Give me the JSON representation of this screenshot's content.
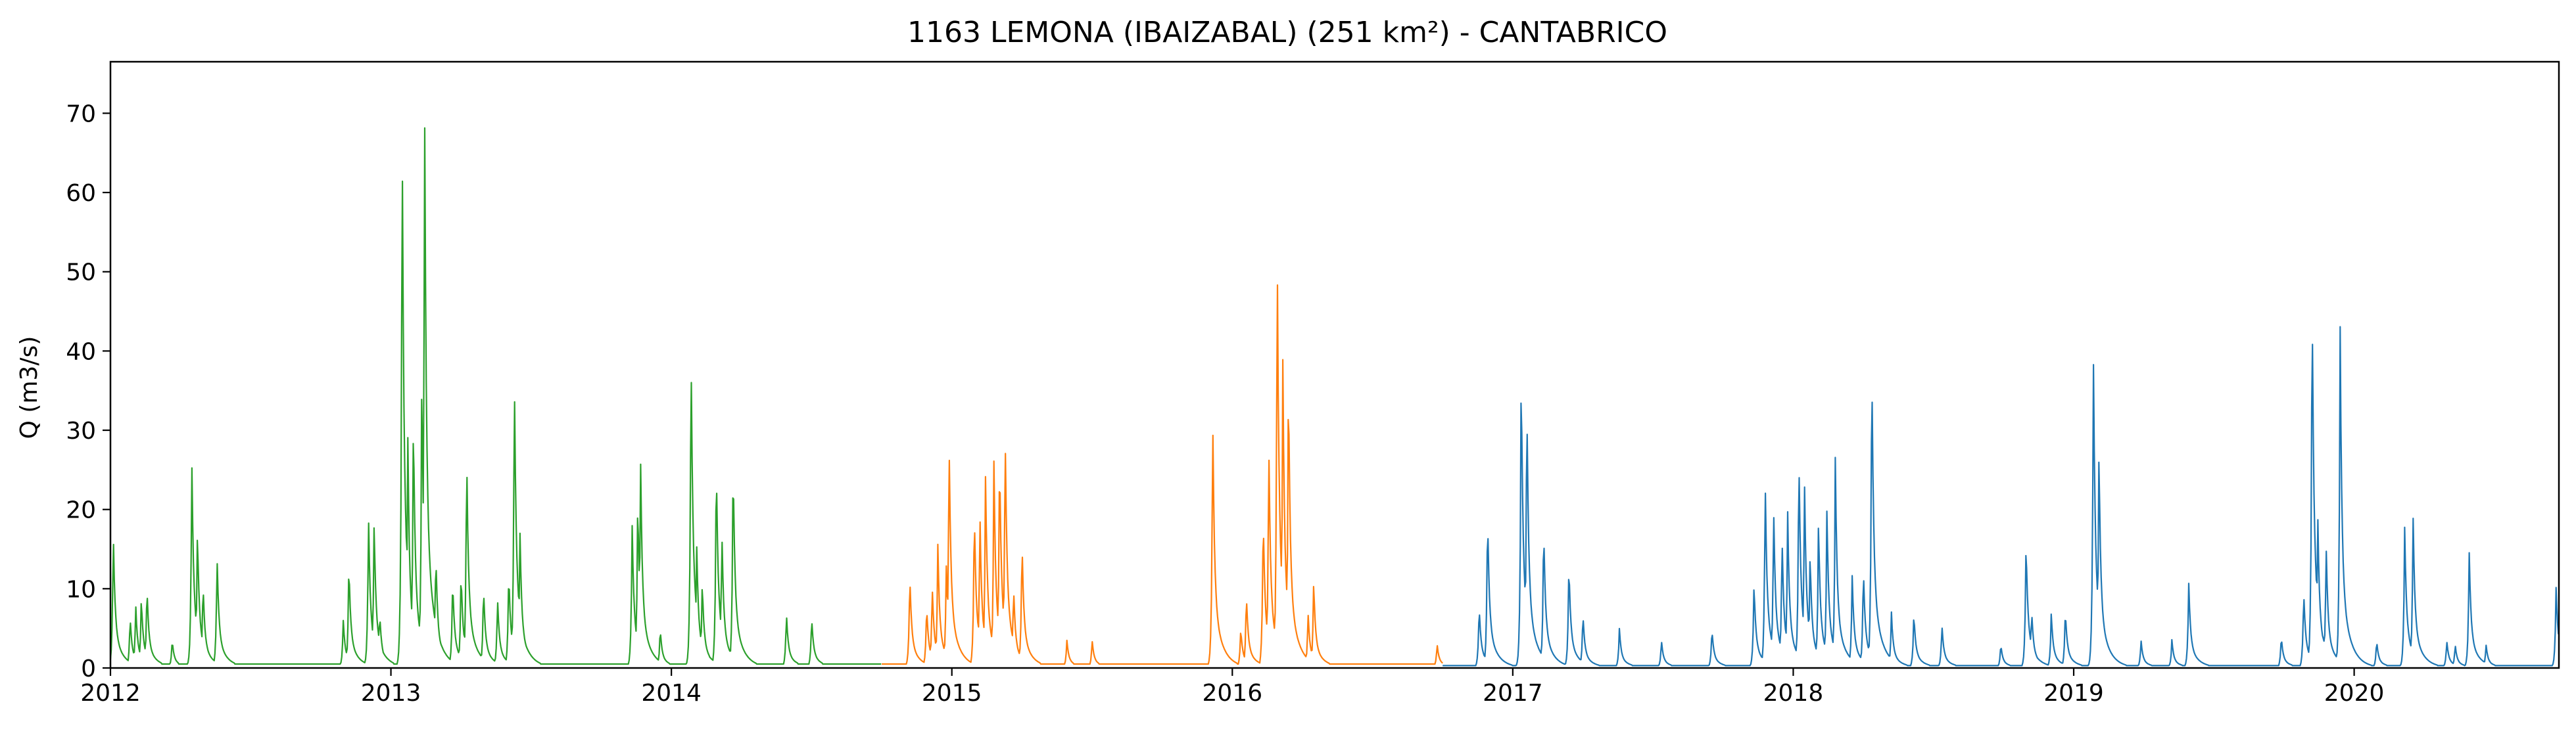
{
  "chart_data": {
    "type": "line",
    "title": "1163 LEMONA (IBAIZABAL) (251 km²) - CANTABRICO",
    "xlabel": "",
    "ylabel": "Q (m3/s)",
    "xlim": [
      2012.0,
      2020.73
    ],
    "ylim": [
      0,
      76.5
    ],
    "x_ticks": [
      2012,
      2013,
      2014,
      2015,
      2016,
      2017,
      2018,
      2019,
      2020
    ],
    "x_tick_labels": [
      "2012",
      "2013",
      "2014",
      "2015",
      "2016",
      "2017",
      "2018",
      "2019",
      "2020"
    ],
    "y_ticks": [
      0,
      10,
      20,
      30,
      40,
      50,
      60,
      70
    ],
    "y_tick_labels": [
      "0",
      "10",
      "20",
      "30",
      "40",
      "50",
      "60",
      "70"
    ],
    "grid": false,
    "legend": "none",
    "series": [
      {
        "color": "#2ca02c",
        "x_start": 2012.0,
        "x_end": 2014.75,
        "base": 0.5,
        "peaks": [
          [
            2012.01,
            17.5
          ],
          [
            2012.07,
            6.5
          ],
          [
            2012.09,
            8.0
          ],
          [
            2012.11,
            9.0
          ],
          [
            2012.13,
            10.5
          ],
          [
            2012.22,
            3.5
          ],
          [
            2012.29,
            26.5
          ],
          [
            2012.31,
            18.0
          ],
          [
            2012.33,
            11.0
          ],
          [
            2012.38,
            14.5
          ],
          [
            2012.83,
            6.0
          ],
          [
            2012.85,
            13.5
          ],
          [
            2012.92,
            19.5
          ],
          [
            2012.94,
            19.0
          ],
          [
            2012.96,
            7.0
          ],
          [
            2013.04,
            70.5
          ],
          [
            2013.06,
            30.0
          ],
          [
            2013.08,
            33.0
          ],
          [
            2013.11,
            38.0
          ],
          [
            2013.12,
            73.0
          ],
          [
            2013.16,
            15.0
          ],
          [
            2013.22,
            11.5
          ],
          [
            2013.25,
            12.5
          ],
          [
            2013.27,
            28.0
          ],
          [
            2013.33,
            10.5
          ],
          [
            2013.38,
            9.0
          ],
          [
            2013.42,
            12.5
          ],
          [
            2013.44,
            38.5
          ],
          [
            2013.46,
            17.5
          ],
          [
            2013.86,
            18.5
          ],
          [
            2013.88,
            22.0
          ],
          [
            2013.89,
            27.0
          ],
          [
            2013.96,
            5.0
          ],
          [
            2014.07,
            42.0
          ],
          [
            2014.09,
            16.0
          ],
          [
            2014.11,
            11.0
          ],
          [
            2014.16,
            27.0
          ],
          [
            2014.18,
            17.5
          ],
          [
            2014.22,
            27.0
          ],
          [
            2014.41,
            7.0
          ],
          [
            2014.5,
            6.5
          ]
        ]
      },
      {
        "color": "#ff7f0e",
        "x_start": 2014.75,
        "x_end": 2016.75,
        "base": 0.5,
        "peaks": [
          [
            2014.85,
            12.0
          ],
          [
            2014.91,
            8.0
          ],
          [
            2014.93,
            10.5
          ],
          [
            2014.95,
            15.5
          ],
          [
            2014.98,
            13.0
          ],
          [
            2014.99,
            30.0
          ],
          [
            2015.08,
            20.5
          ],
          [
            2015.1,
            20.0
          ],
          [
            2015.12,
            25.0
          ],
          [
            2015.15,
            26.0
          ],
          [
            2015.17,
            28.0
          ],
          [
            2015.19,
            31.0
          ],
          [
            2015.22,
            10.5
          ],
          [
            2015.25,
            16.5
          ],
          [
            2015.41,
            3.5
          ],
          [
            2015.5,
            3.5
          ],
          [
            2015.93,
            32.5
          ],
          [
            2016.03,
            5.0
          ],
          [
            2016.05,
            9.5
          ],
          [
            2016.11,
            20.0
          ],
          [
            2016.13,
            29.0
          ],
          [
            2016.16,
            54.5
          ],
          [
            2016.18,
            39.5
          ],
          [
            2016.2,
            38.0
          ],
          [
            2016.27,
            7.0
          ],
          [
            2016.29,
            11.0
          ],
          [
            2016.73,
            3.0
          ]
        ]
      },
      {
        "color": "#1f77b4",
        "x_start": 2016.75,
        "x_end": 2020.73,
        "base": 0.3,
        "peaks": [
          [
            2016.88,
            8.0
          ],
          [
            2016.91,
            20.0
          ],
          [
            2017.03,
            39.0
          ],
          [
            2017.05,
            35.0
          ],
          [
            2017.11,
            18.5
          ],
          [
            2017.2,
            13.5
          ],
          [
            2017.25,
            7.0
          ],
          [
            2017.38,
            5.0
          ],
          [
            2017.53,
            3.5
          ],
          [
            2017.71,
            5.0
          ],
          [
            2017.86,
            11.0
          ],
          [
            2017.9,
            24.0
          ],
          [
            2017.93,
            21.0
          ],
          [
            2017.96,
            17.0
          ],
          [
            2017.98,
            20.0
          ],
          [
            2018.02,
            28.0
          ],
          [
            2018.04,
            24.0
          ],
          [
            2018.06,
            15.0
          ],
          [
            2018.09,
            19.0
          ],
          [
            2018.12,
            20.5
          ],
          [
            2018.15,
            26.5
          ],
          [
            2018.21,
            12.0
          ],
          [
            2018.25,
            13.0
          ],
          [
            2018.28,
            40.5
          ],
          [
            2018.35,
            7.0
          ],
          [
            2018.43,
            7.0
          ],
          [
            2018.53,
            5.5
          ],
          [
            2018.74,
            3.0
          ],
          [
            2018.83,
            16.5
          ],
          [
            2018.85,
            7.5
          ],
          [
            2018.92,
            7.0
          ],
          [
            2018.97,
            7.5
          ],
          [
            2019.07,
            41.0
          ],
          [
            2019.09,
            28.0
          ],
          [
            2019.24,
            3.5
          ],
          [
            2019.35,
            3.5
          ],
          [
            2019.41,
            11.0
          ],
          [
            2019.74,
            4.0
          ],
          [
            2019.82,
            10.0
          ],
          [
            2019.85,
            48.5
          ],
          [
            2019.87,
            20.0
          ],
          [
            2019.9,
            16.0
          ],
          [
            2019.95,
            43.0
          ],
          [
            2019.97,
            4.5
          ],
          [
            2020.08,
            3.5
          ],
          [
            2020.18,
            18.0
          ],
          [
            2020.21,
            19.5
          ],
          [
            2020.33,
            3.5
          ],
          [
            2020.36,
            3.0
          ],
          [
            2020.41,
            15.0
          ],
          [
            2020.47,
            3.0
          ],
          [
            2020.72,
            10.5
          ]
        ]
      }
    ]
  }
}
